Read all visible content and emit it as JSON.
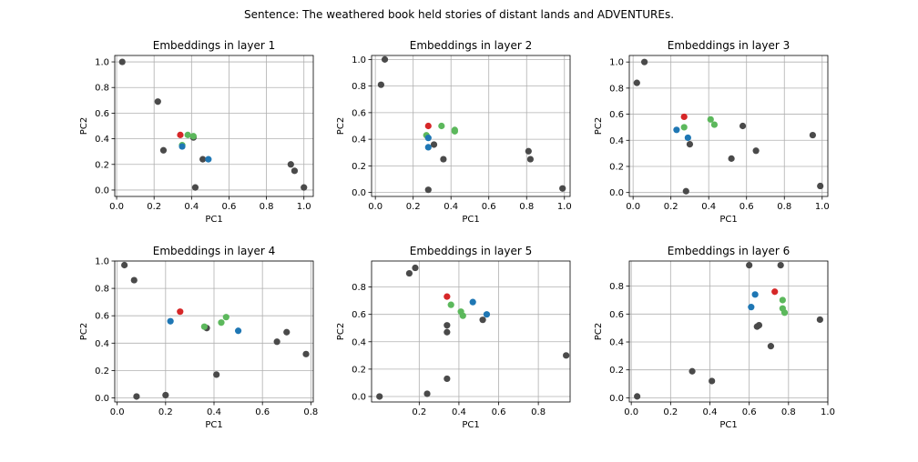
{
  "figure": {
    "suptitle": "Sentence: The weathered book held stories of distant lands and ADVENTUREs."
  },
  "colors": {
    "gray": "#4a4a4a",
    "red": "#d62728",
    "green": "#5cb85c",
    "blue": "#1f77b4"
  },
  "chart_data": [
    {
      "type": "scatter",
      "title": "Embeddings in layer 1",
      "xlabel": "PC1",
      "ylabel": "PC2",
      "xlim": [
        -0.01,
        1.05
      ],
      "ylim": [
        -0.05,
        1.05
      ],
      "xticks": [
        "0.0",
        "0.2",
        "0.4",
        "0.6",
        "0.8",
        "1.0"
      ],
      "yticks": [
        "0.0",
        "0.2",
        "0.4",
        "0.6",
        "0.8",
        "1.0"
      ],
      "grid": true,
      "points": [
        {
          "x": 0.03,
          "y": 1.0,
          "color": "gray"
        },
        {
          "x": 0.22,
          "y": 0.69,
          "color": "gray"
        },
        {
          "x": 0.25,
          "y": 0.31,
          "color": "gray"
        },
        {
          "x": 0.42,
          "y": 0.02,
          "color": "gray"
        },
        {
          "x": 0.46,
          "y": 0.24,
          "color": "gray"
        },
        {
          "x": 0.93,
          "y": 0.2,
          "color": "gray"
        },
        {
          "x": 0.95,
          "y": 0.15,
          "color": "gray"
        },
        {
          "x": 1.0,
          "y": 0.02,
          "color": "gray"
        },
        {
          "x": 0.41,
          "y": 0.41,
          "color": "gray"
        },
        {
          "x": 0.34,
          "y": 0.43,
          "color": "red"
        },
        {
          "x": 0.35,
          "y": 0.35,
          "color": "green"
        },
        {
          "x": 0.38,
          "y": 0.43,
          "color": "green"
        },
        {
          "x": 0.41,
          "y": 0.42,
          "color": "green"
        },
        {
          "x": 0.35,
          "y": 0.34,
          "color": "blue"
        },
        {
          "x": 0.49,
          "y": 0.24,
          "color": "blue"
        }
      ]
    },
    {
      "type": "scatter",
      "title": "Embeddings in layer 2",
      "xlabel": "PC1",
      "ylabel": "PC2",
      "xlim": [
        -0.02,
        1.03
      ],
      "ylim": [
        -0.03,
        1.03
      ],
      "xticks": [
        "0.0",
        "0.2",
        "0.4",
        "0.6",
        "0.8",
        "1.0"
      ],
      "yticks": [
        "0.0",
        "0.2",
        "0.4",
        "0.6",
        "0.8",
        "1.0"
      ],
      "grid": true,
      "points": [
        {
          "x": 0.05,
          "y": 1.0,
          "color": "gray"
        },
        {
          "x": 0.03,
          "y": 0.81,
          "color": "gray"
        },
        {
          "x": 0.31,
          "y": 0.36,
          "color": "gray"
        },
        {
          "x": 0.36,
          "y": 0.25,
          "color": "gray"
        },
        {
          "x": 0.28,
          "y": 0.02,
          "color": "gray"
        },
        {
          "x": 0.81,
          "y": 0.31,
          "color": "gray"
        },
        {
          "x": 0.82,
          "y": 0.25,
          "color": "gray"
        },
        {
          "x": 0.99,
          "y": 0.03,
          "color": "gray"
        },
        {
          "x": 0.28,
          "y": 0.5,
          "color": "red"
        },
        {
          "x": 0.35,
          "y": 0.5,
          "color": "green"
        },
        {
          "x": 0.42,
          "y": 0.46,
          "color": "green"
        },
        {
          "x": 0.42,
          "y": 0.47,
          "color": "green"
        },
        {
          "x": 0.27,
          "y": 0.43,
          "color": "green"
        },
        {
          "x": 0.28,
          "y": 0.41,
          "color": "blue"
        },
        {
          "x": 0.28,
          "y": 0.34,
          "color": "blue"
        }
      ]
    },
    {
      "type": "scatter",
      "title": "Embeddings in layer 3",
      "xlabel": "PC1",
      "ylabel": "PC2",
      "xlim": [
        -0.02,
        1.03
      ],
      "ylim": [
        -0.03,
        1.05
      ],
      "xticks": [
        "0.0",
        "0.2",
        "0.4",
        "0.6",
        "0.8",
        "1.0"
      ],
      "yticks": [
        "0.0",
        "0.2",
        "0.4",
        "0.6",
        "0.8",
        "1.0"
      ],
      "grid": true,
      "points": [
        {
          "x": 0.06,
          "y": 1.0,
          "color": "gray"
        },
        {
          "x": 0.02,
          "y": 0.84,
          "color": "gray"
        },
        {
          "x": 0.3,
          "y": 0.37,
          "color": "gray"
        },
        {
          "x": 0.28,
          "y": 0.01,
          "color": "gray"
        },
        {
          "x": 0.52,
          "y": 0.26,
          "color": "gray"
        },
        {
          "x": 0.58,
          "y": 0.51,
          "color": "gray"
        },
        {
          "x": 0.65,
          "y": 0.32,
          "color": "gray"
        },
        {
          "x": 0.95,
          "y": 0.44,
          "color": "gray"
        },
        {
          "x": 0.99,
          "y": 0.05,
          "color": "gray"
        },
        {
          "x": 0.27,
          "y": 0.58,
          "color": "red"
        },
        {
          "x": 0.27,
          "y": 0.5,
          "color": "green"
        },
        {
          "x": 0.41,
          "y": 0.56,
          "color": "green"
        },
        {
          "x": 0.43,
          "y": 0.52,
          "color": "green"
        },
        {
          "x": 0.23,
          "y": 0.48,
          "color": "blue"
        },
        {
          "x": 0.29,
          "y": 0.42,
          "color": "blue"
        }
      ]
    },
    {
      "type": "scatter",
      "title": "Embeddings in layer 4",
      "xlabel": "PC1",
      "ylabel": "PC2",
      "xlim": [
        -0.01,
        0.81
      ],
      "ylim": [
        -0.03,
        1.0
      ],
      "xticks": [
        "0.0",
        "0.2",
        "0.4",
        "0.6",
        "0.8"
      ],
      "yticks": [
        "0.0",
        "0.2",
        "0.4",
        "0.6",
        "0.8",
        "1.0"
      ],
      "grid": true,
      "points": [
        {
          "x": 0.03,
          "y": 0.97,
          "color": "gray"
        },
        {
          "x": 0.07,
          "y": 0.86,
          "color": "gray"
        },
        {
          "x": 0.08,
          "y": 0.01,
          "color": "gray"
        },
        {
          "x": 0.2,
          "y": 0.02,
          "color": "gray"
        },
        {
          "x": 0.37,
          "y": 0.51,
          "color": "gray"
        },
        {
          "x": 0.41,
          "y": 0.17,
          "color": "gray"
        },
        {
          "x": 0.66,
          "y": 0.41,
          "color": "gray"
        },
        {
          "x": 0.7,
          "y": 0.48,
          "color": "gray"
        },
        {
          "x": 0.78,
          "y": 0.32,
          "color": "gray"
        },
        {
          "x": 0.26,
          "y": 0.63,
          "color": "red"
        },
        {
          "x": 0.36,
          "y": 0.52,
          "color": "green"
        },
        {
          "x": 0.43,
          "y": 0.55,
          "color": "green"
        },
        {
          "x": 0.45,
          "y": 0.59,
          "color": "green"
        },
        {
          "x": 0.22,
          "y": 0.56,
          "color": "blue"
        },
        {
          "x": 0.5,
          "y": 0.49,
          "color": "blue"
        }
      ]
    },
    {
      "type": "scatter",
      "title": "Embeddings in layer 5",
      "xlabel": "PC1",
      "ylabel": "PC2",
      "xlim": [
        -0.04,
        0.96
      ],
      "ylim": [
        -0.04,
        0.99
      ],
      "xticks": [
        "0.2",
        "0.4",
        "0.6",
        "0.8"
      ],
      "yticks": [
        "0.0",
        "0.2",
        "0.4",
        "0.6",
        "0.8"
      ],
      "grid": true,
      "points": [
        {
          "x": 0.15,
          "y": 0.9,
          "color": "gray"
        },
        {
          "x": 0.18,
          "y": 0.94,
          "color": "gray"
        },
        {
          "x": 0.34,
          "y": 0.52,
          "color": "gray"
        },
        {
          "x": 0.34,
          "y": 0.47,
          "color": "gray"
        },
        {
          "x": 0.34,
          "y": 0.13,
          "color": "gray"
        },
        {
          "x": 0.24,
          "y": 0.02,
          "color": "gray"
        },
        {
          "x": 0.0,
          "y": 0.0,
          "color": "gray"
        },
        {
          "x": 0.52,
          "y": 0.56,
          "color": "gray"
        },
        {
          "x": 0.94,
          "y": 0.3,
          "color": "gray"
        },
        {
          "x": 0.34,
          "y": 0.73,
          "color": "red"
        },
        {
          "x": 0.36,
          "y": 0.67,
          "color": "green"
        },
        {
          "x": 0.41,
          "y": 0.62,
          "color": "green"
        },
        {
          "x": 0.42,
          "y": 0.59,
          "color": "green"
        },
        {
          "x": 0.47,
          "y": 0.69,
          "color": "blue"
        },
        {
          "x": 0.54,
          "y": 0.6,
          "color": "blue"
        }
      ]
    },
    {
      "type": "scatter",
      "title": "Embeddings in layer 6",
      "xlabel": "PC1",
      "ylabel": "PC2",
      "xlim": [
        -0.01,
        1.0
      ],
      "ylim": [
        -0.03,
        0.98
      ],
      "xticks": [
        "0.0",
        "0.2",
        "0.4",
        "0.6",
        "0.8",
        "1.0"
      ],
      "yticks": [
        "0.0",
        "0.2",
        "0.4",
        "0.6",
        "0.8"
      ],
      "grid": true,
      "points": [
        {
          "x": 0.03,
          "y": 0.01,
          "color": "gray"
        },
        {
          "x": 0.31,
          "y": 0.19,
          "color": "gray"
        },
        {
          "x": 0.41,
          "y": 0.12,
          "color": "gray"
        },
        {
          "x": 0.6,
          "y": 0.95,
          "color": "gray"
        },
        {
          "x": 0.76,
          "y": 0.95,
          "color": "gray"
        },
        {
          "x": 0.64,
          "y": 0.51,
          "color": "gray"
        },
        {
          "x": 0.65,
          "y": 0.52,
          "color": "gray"
        },
        {
          "x": 0.71,
          "y": 0.37,
          "color": "gray"
        },
        {
          "x": 0.96,
          "y": 0.56,
          "color": "gray"
        },
        {
          "x": 0.73,
          "y": 0.76,
          "color": "red"
        },
        {
          "x": 0.77,
          "y": 0.7,
          "color": "green"
        },
        {
          "x": 0.77,
          "y": 0.64,
          "color": "green"
        },
        {
          "x": 0.78,
          "y": 0.61,
          "color": "green"
        },
        {
          "x": 0.63,
          "y": 0.74,
          "color": "blue"
        },
        {
          "x": 0.61,
          "y": 0.65,
          "color": "blue"
        }
      ]
    }
  ]
}
